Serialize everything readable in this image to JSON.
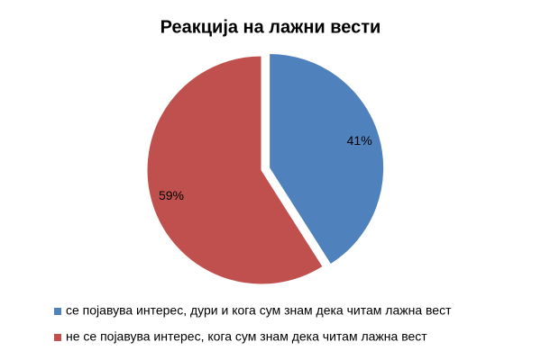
{
  "chart_data": {
    "type": "pie",
    "title": "Реакција на лажни вести",
    "categories": [
      "се појавува интерес, дури и кога сум знам дека читам лажна вест",
      "не се појавува интерес, кога сум знам дека читам лажна вест"
    ],
    "values": [
      41,
      59
    ],
    "value_labels": [
      "41%",
      "59%"
    ],
    "colors": [
      "#4f81bd",
      "#c0504d"
    ],
    "legend": "bottom"
  }
}
